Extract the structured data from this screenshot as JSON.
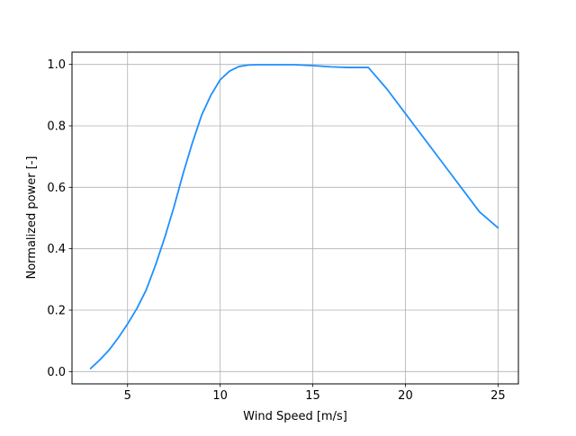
{
  "chart_data": {
    "type": "line",
    "title": "",
    "xlabel": "Wind Speed [m/s]",
    "ylabel": "Normalized power [-]",
    "xlim": [
      2.0,
      26.1
    ],
    "ylim": [
      -0.04,
      1.04
    ],
    "xticks": [
      5,
      10,
      15,
      20,
      25
    ],
    "yticks": [
      0.0,
      0.2,
      0.4,
      0.6,
      0.8,
      1.0
    ],
    "xtick_labels": [
      "5",
      "10",
      "15",
      "20",
      "25"
    ],
    "ytick_labels": [
      "0.0",
      "0.2",
      "0.4",
      "0.6",
      "0.8",
      "1.0"
    ],
    "grid": true,
    "series": [
      {
        "color": "#1e90ff",
        "x": [
          3.0,
          3.5,
          4.0,
          4.5,
          5.0,
          5.5,
          6.0,
          6.5,
          7.0,
          7.5,
          8.0,
          8.5,
          9.0,
          9.5,
          10.0,
          10.5,
          11.0,
          11.5,
          12.0,
          13.0,
          14.0,
          15.0,
          16.0,
          17.0,
          18.0,
          19.0,
          20.0,
          21.0,
          22.0,
          23.0,
          24.0,
          25.0
        ],
        "y": [
          0.01,
          0.038,
          0.07,
          0.11,
          0.155,
          0.205,
          0.265,
          0.345,
          0.435,
          0.535,
          0.645,
          0.745,
          0.835,
          0.9,
          0.95,
          0.978,
          0.993,
          0.998,
          0.999,
          0.999,
          0.999,
          0.996,
          0.992,
          0.99,
          0.99,
          0.92,
          0.84,
          0.76,
          0.68,
          0.6,
          0.52,
          0.468
        ]
      }
    ]
  }
}
